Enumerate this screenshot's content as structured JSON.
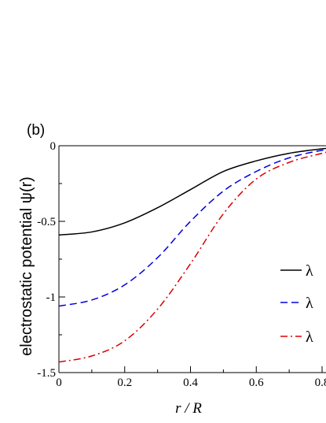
{
  "chart_data": {
    "type": "line",
    "panel_label": "(b)",
    "xlabel": "r / R",
    "ylabel": "electrostatic potential  ψ(r)",
    "xlim": [
      0,
      0.82
    ],
    "ylim": [
      -1.5,
      0
    ],
    "x_ticks": [
      0,
      0.2,
      0.4,
      0.6,
      0.8
    ],
    "x_tick_labels": [
      "0",
      "0.2",
      "0.4",
      "0.6",
      "0.8"
    ],
    "y_ticks": [
      0,
      -0.5,
      -1,
      -1.5
    ],
    "y_tick_labels": [
      "0",
      "-0.5",
      "-1",
      "-1.5"
    ],
    "grid": false,
    "legend_position": "right",
    "x": [
      0,
      0.1,
      0.2,
      0.3,
      0.4,
      0.5,
      0.6,
      0.7,
      0.8,
      0.82
    ],
    "series": [
      {
        "name": "λ",
        "color": "#000000",
        "dash": "solid",
        "values": [
          -0.59,
          -0.57,
          -0.51,
          -0.41,
          -0.29,
          -0.17,
          -0.1,
          -0.05,
          -0.02,
          -0.02
        ]
      },
      {
        "name": "λ",
        "color": "#0000dd",
        "dash": "dashed",
        "values": [
          -1.06,
          -1.02,
          -0.92,
          -0.74,
          -0.5,
          -0.3,
          -0.17,
          -0.08,
          -0.03,
          -0.03
        ]
      },
      {
        "name": "λ",
        "color": "#dd0000",
        "dash": "dashdot",
        "values": [
          -1.43,
          -1.39,
          -1.29,
          -1.08,
          -0.78,
          -0.45,
          -0.22,
          -0.11,
          -0.05,
          -0.04
        ]
      }
    ]
  }
}
